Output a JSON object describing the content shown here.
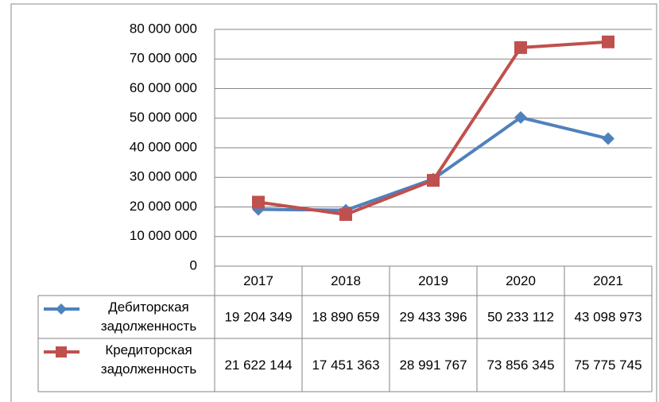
{
  "chart_data": {
    "type": "line",
    "categories": [
      "2017",
      "2018",
      "2019",
      "2020",
      "2021"
    ],
    "series": [
      {
        "name": "Дебиторская задолженность",
        "color": "#4f81bd",
        "marker": "diamond",
        "values": [
          19204349,
          18890659,
          29433396,
          50233112,
          43098973
        ],
        "value_labels": [
          "19 204 349",
          "18 890 659",
          "29 433 396",
          "50 233 112",
          "43 098 973"
        ]
      },
      {
        "name": "Кредиторская задолженность",
        "color": "#c0504d",
        "marker": "square",
        "values": [
          21622144,
          17451363,
          28991767,
          73856345,
          75775745
        ],
        "value_labels": [
          "21 622 144",
          "17 451 363",
          "28 991 767",
          "73 856 345",
          "75 775 745"
        ]
      }
    ],
    "ylim": [
      0,
      80000000
    ],
    "yticks": [
      0,
      {
        "value": 10000000,
        "label": "10 000 000"
      },
      {
        "value": 20000000,
        "label": "20 000 000"
      },
      {
        "value": 30000000,
        "label": "30 000 000"
      },
      {
        "value": 40000000,
        "label": "40 000 000"
      },
      {
        "value": 50000000,
        "label": "50 000 000"
      },
      {
        "value": 60000000,
        "label": "60 000 000"
      },
      {
        "value": 70000000,
        "label": "70 000 000"
      },
      {
        "value": 80000000,
        "label": "80 000 000"
      }
    ],
    "grid": true,
    "data_table": true
  }
}
